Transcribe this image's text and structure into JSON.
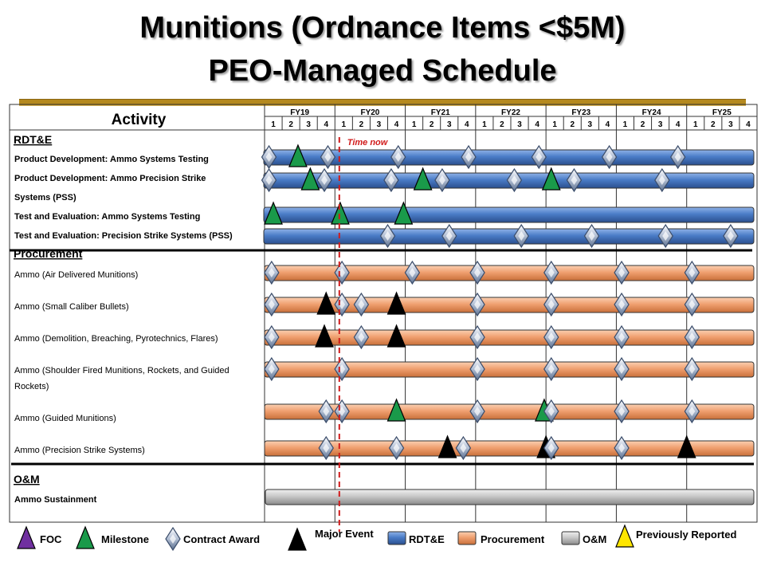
{
  "title_line1": "Munitions (Ordnance Items <$5M)",
  "title_line2": "PEO-Managed Schedule",
  "activity_header": "Activity",
  "time_now_label": "Time now",
  "fiscal_years": [
    "FY19",
    "FY20",
    "FY21",
    "FY22",
    "FY23",
    "FY24",
    "FY25"
  ],
  "quarters": [
    "1",
    "2",
    "3",
    "4"
  ],
  "time_now_quarter": 4.25,
  "colors": {
    "rdte": "#4a7cc7",
    "procurement": "#f0a070",
    "om": "#c8c8c8",
    "foc": "#7030a0",
    "milestone": "#1a9a4a",
    "contract_award": "#b8c4d8",
    "major_event": "#000000",
    "previously_reported": "#ffe600",
    "time_now": "#d11a1a",
    "gold_rule": "#b5891e"
  },
  "sections": [
    {
      "name": "RDT&E",
      "type": "rdte",
      "rows": [
        {
          "label": "Product Development:  Ammo Systems Testing",
          "bold": true,
          "markers": [
            {
              "t": "contract_award",
              "q": 0.25
            },
            {
              "t": "milestone",
              "q": 1.9
            },
            {
              "t": "contract_award",
              "q": 3.6
            },
            {
              "t": "contract_award",
              "q": 7.6
            },
            {
              "t": "contract_award",
              "q": 11.6
            },
            {
              "t": "contract_award",
              "q": 15.6
            },
            {
              "t": "contract_award",
              "q": 19.6
            },
            {
              "t": "contract_award",
              "q": 23.5
            }
          ]
        },
        {
          "label": "Product Development:  Ammo Precision Strike",
          "label2": "Systems (PSS)",
          "bold": true,
          "markers": [
            {
              "t": "contract_award",
              "q": 0.25
            },
            {
              "t": "milestone",
              "q": 2.6
            },
            {
              "t": "contract_award",
              "q": 3.4
            },
            {
              "t": "contract_award",
              "q": 7.2
            },
            {
              "t": "milestone",
              "q": 9.0
            },
            {
              "t": "contract_award",
              "q": 10.1
            },
            {
              "t": "contract_award",
              "q": 14.2
            },
            {
              "t": "milestone",
              "q": 16.3
            },
            {
              "t": "contract_award",
              "q": 17.6
            },
            {
              "t": "contract_award",
              "q": 22.6
            }
          ]
        },
        {
          "label": "Test and Evaluation:  Ammo Systems Testing",
          "bold": true,
          "markers": [
            {
              "t": "milestone",
              "q": 0.5
            },
            {
              "t": "milestone",
              "q": 4.3
            },
            {
              "t": "milestone",
              "q": 7.9
            }
          ]
        },
        {
          "label": "Test and Evaluation:  Precision Strike Systems (PSS)",
          "bold": true,
          "markers": [
            {
              "t": "contract_award",
              "q": 7.0
            },
            {
              "t": "contract_award",
              "q": 10.5
            },
            {
              "t": "contract_award",
              "q": 14.6
            },
            {
              "t": "contract_award",
              "q": 18.6
            },
            {
              "t": "contract_award",
              "q": 22.8
            },
            {
              "t": "contract_award",
              "q": 26.5
            }
          ]
        }
      ]
    },
    {
      "name": "Procurement",
      "type": "procurement",
      "rows": [
        {
          "label": "Ammo (Air Delivered Munitions)",
          "markers": [
            {
              "t": "contract_award",
              "q": 0.4
            },
            {
              "t": "contract_award",
              "q": 4.4
            },
            {
              "t": "contract_award",
              "q": 8.4
            },
            {
              "t": "contract_award",
              "q": 12.1
            },
            {
              "t": "contract_award",
              "q": 16.3
            },
            {
              "t": "contract_award",
              "q": 20.3
            },
            {
              "t": "contract_award",
              "q": 24.3
            }
          ]
        },
        {
          "label": "Ammo (Small Caliber Bullets)",
          "markers": [
            {
              "t": "contract_award",
              "q": 0.4
            },
            {
              "t": "major_event",
              "q": 3.5
            },
            {
              "t": "contract_award",
              "q": 4.4
            },
            {
              "t": "contract_award",
              "q": 5.5
            },
            {
              "t": "major_event",
              "q": 7.5
            },
            {
              "t": "contract_award",
              "q": 12.1
            },
            {
              "t": "contract_award",
              "q": 16.3
            },
            {
              "t": "contract_award",
              "q": 20.3
            },
            {
              "t": "contract_award",
              "q": 24.3
            }
          ]
        },
        {
          "label": "Ammo (Demolition, Breaching, Pyrotechnics, Flares)",
          "markers": [
            {
              "t": "contract_award",
              "q": 0.4
            },
            {
              "t": "major_event",
              "q": 3.4
            },
            {
              "t": "contract_award",
              "q": 5.5
            },
            {
              "t": "major_event",
              "q": 7.5
            },
            {
              "t": "contract_award",
              "q": 12.1
            },
            {
              "t": "contract_award",
              "q": 16.3
            },
            {
              "t": "contract_award",
              "q": 20.3
            },
            {
              "t": "contract_award",
              "q": 24.3
            }
          ]
        },
        {
          "label": "Ammo (Shoulder Fired Munitions, Rockets, and Guided",
          "label2": "Rockets)",
          "markers": [
            {
              "t": "contract_award",
              "q": 0.4
            },
            {
              "t": "contract_award",
              "q": 4.4
            },
            {
              "t": "contract_award",
              "q": 12.1
            },
            {
              "t": "contract_award",
              "q": 16.3
            },
            {
              "t": "contract_award",
              "q": 20.3
            },
            {
              "t": "contract_award",
              "q": 24.3
            }
          ]
        },
        {
          "label": "Ammo (Guided Munitions)",
          "markers": [
            {
              "t": "contract_award",
              "q": 3.5
            },
            {
              "t": "contract_award",
              "q": 4.4
            },
            {
              "t": "milestone",
              "q": 7.5
            },
            {
              "t": "contract_award",
              "q": 12.1
            },
            {
              "t": "milestone",
              "q": 15.9
            },
            {
              "t": "contract_award",
              "q": 16.3
            },
            {
              "t": "contract_award",
              "q": 20.3
            },
            {
              "t": "contract_award",
              "q": 24.3
            }
          ]
        },
        {
          "label": "Ammo (Precision Strike Systems)",
          "markers": [
            {
              "t": "contract_award",
              "q": 3.5
            },
            {
              "t": "contract_award",
              "q": 7.5
            },
            {
              "t": "major_event",
              "q": 10.4
            },
            {
              "t": "contract_award",
              "q": 11.3
            },
            {
              "t": "major_event",
              "q": 16.0
            },
            {
              "t": "contract_award",
              "q": 16.3
            },
            {
              "t": "contract_award",
              "q": 20.3
            },
            {
              "t": "major_event",
              "q": 24.0
            }
          ]
        }
      ]
    },
    {
      "name": "O&M",
      "type": "om",
      "rows": [
        {
          "label": "Ammo Sustainment",
          "bold": true,
          "markers": []
        }
      ]
    }
  ],
  "legend": [
    {
      "type": "foc",
      "label": "FOC"
    },
    {
      "type": "milestone",
      "label": "Milestone"
    },
    {
      "type": "contract_award",
      "label": "Contract Award"
    },
    {
      "type": "major_event",
      "label": "Major Event"
    },
    {
      "type": "rdte",
      "label": "RDT&E"
    },
    {
      "type": "procurement",
      "label": "Procurement"
    },
    {
      "type": "om",
      "label": "O&M"
    },
    {
      "type": "previously_reported",
      "label": "Previously Reported"
    }
  ]
}
